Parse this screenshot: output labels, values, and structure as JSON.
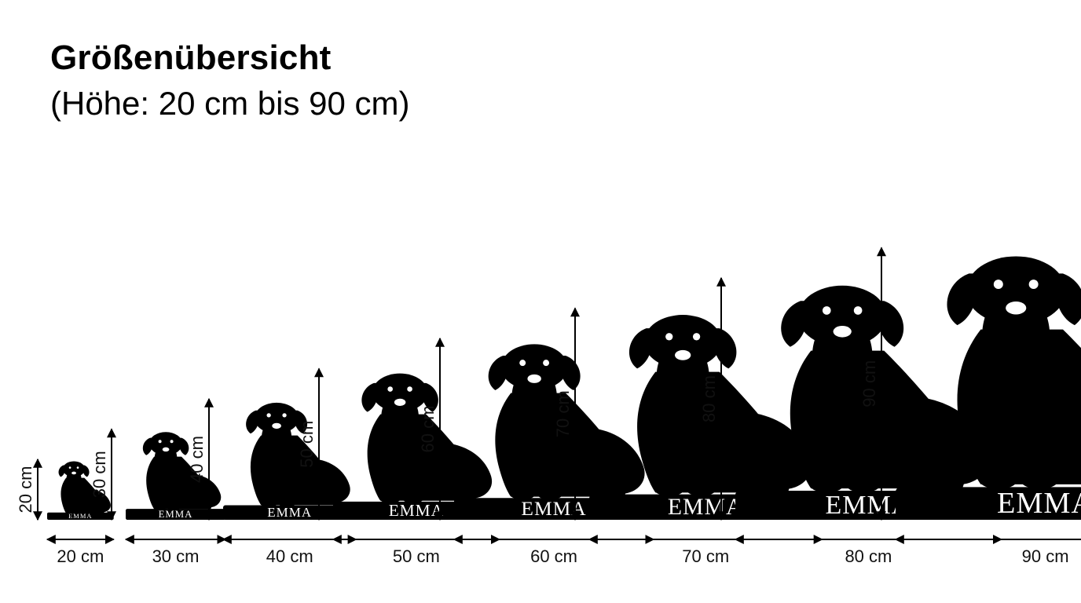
{
  "header": {
    "title": "Größenübersicht",
    "subtitle": "(Höhe: 20 cm bis 90 cm)"
  },
  "plate_name": "EMMA",
  "colors": {
    "silhouette": "#000000",
    "background": "#ffffff",
    "plate_text": "#ffffff"
  },
  "sizes": [
    {
      "height_label": "20 cm",
      "width_label": "20 cm",
      "height_cm": 20,
      "width_cm": 20
    },
    {
      "height_label": "30 cm",
      "width_label": "30 cm",
      "height_cm": 30,
      "width_cm": 30
    },
    {
      "height_label": "40 cm",
      "width_label": "40 cm",
      "height_cm": 40,
      "width_cm": 40
    },
    {
      "height_label": "50 cm",
      "width_label": "50 cm",
      "height_cm": 50,
      "width_cm": 50
    },
    {
      "height_label": "60 cm",
      "width_label": "60 cm",
      "height_cm": 60,
      "width_cm": 60
    },
    {
      "height_label": "70 cm",
      "width_label": "70 cm",
      "height_cm": 70,
      "width_cm": 70
    },
    {
      "height_label": "80 cm",
      "width_label": "80 cm",
      "height_cm": 80,
      "width_cm": 80
    },
    {
      "height_label": "90 cm",
      "width_label": "90 cm",
      "height_cm": 90,
      "width_cm": 90
    }
  ],
  "icons": {
    "dog": "dog-silhouette-icon",
    "arrow": "double-arrow-icon"
  }
}
